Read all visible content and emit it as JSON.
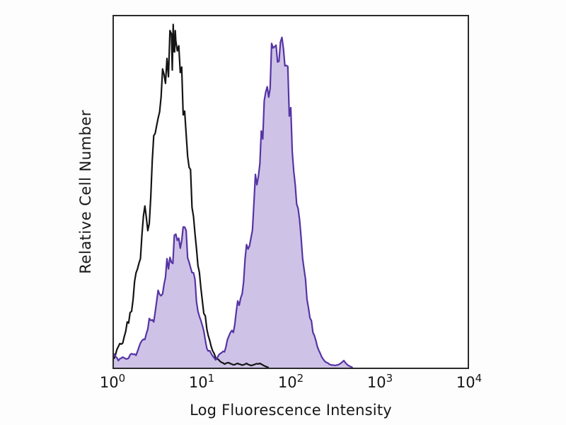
{
  "figure": {
    "background": "#ffffff",
    "frame_color": "#2b2b2b"
  },
  "chart_data": {
    "type": "histogram-overlay",
    "title": "",
    "xlabel": "Log Fluorescence Intensity",
    "ylabel": "Relative Cell Number",
    "x_scale": "log10",
    "x_exponent_range": [
      0,
      4
    ],
    "x_ticks": [
      "10^0",
      "10^1",
      "10^2",
      "10^3",
      "10^4"
    ],
    "y_ticks": [],
    "ylim": [
      0,
      1
    ],
    "grid": false,
    "legend": "none",
    "noise": {
      "upsample": 3,
      "amount": 0.1
    },
    "series": [
      {
        "name": "black-open-histogram",
        "style": "open",
        "line_color": "#141414",
        "fill_color": "none",
        "points": [
          [
            0.0,
            0.025
          ],
          [
            0.05,
            0.06
          ],
          [
            0.1,
            0.07
          ],
          [
            0.15,
            0.13
          ],
          [
            0.2,
            0.16
          ],
          [
            0.25,
            0.27
          ],
          [
            0.3,
            0.31
          ],
          [
            0.35,
            0.46
          ],
          [
            0.4,
            0.41
          ],
          [
            0.45,
            0.66
          ],
          [
            0.5,
            0.71
          ],
          [
            0.55,
            0.85
          ],
          [
            0.6,
            0.88
          ],
          [
            0.65,
            0.95
          ],
          [
            0.68,
            0.9
          ],
          [
            0.7,
            0.93
          ],
          [
            0.75,
            0.84
          ],
          [
            0.8,
            0.73
          ],
          [
            0.85,
            0.57
          ],
          [
            0.9,
            0.43
          ],
          [
            0.95,
            0.29
          ],
          [
            1.0,
            0.19
          ],
          [
            1.05,
            0.11
          ],
          [
            1.1,
            0.06
          ],
          [
            1.15,
            0.028
          ],
          [
            1.2,
            0.018
          ],
          [
            1.25,
            0.01
          ],
          [
            1.3,
            0.014
          ],
          [
            1.35,
            0.008
          ],
          [
            1.4,
            0.012
          ],
          [
            1.45,
            0.007
          ],
          [
            1.5,
            0.012
          ],
          [
            1.55,
            0.006
          ],
          [
            1.6,
            0.01
          ],
          [
            1.65,
            0.012
          ],
          [
            1.7,
            0.005
          ],
          [
            1.75,
            0.0
          ]
        ]
      },
      {
        "name": "purple-filled-histogram",
        "style": "filled",
        "line_color": "#5634a4",
        "fill_color": "#cec3e6",
        "points": [
          [
            0.0,
            0.04
          ],
          [
            0.05,
            0.02
          ],
          [
            0.1,
            0.03
          ],
          [
            0.15,
            0.025
          ],
          [
            0.2,
            0.04
          ],
          [
            0.25,
            0.035
          ],
          [
            0.3,
            0.07
          ],
          [
            0.35,
            0.08
          ],
          [
            0.4,
            0.14
          ],
          [
            0.45,
            0.13
          ],
          [
            0.5,
            0.22
          ],
          [
            0.55,
            0.21
          ],
          [
            0.6,
            0.31
          ],
          [
            0.65,
            0.3
          ],
          [
            0.7,
            0.38
          ],
          [
            0.75,
            0.34
          ],
          [
            0.8,
            0.4
          ],
          [
            0.85,
            0.3
          ],
          [
            0.9,
            0.27
          ],
          [
            0.95,
            0.16
          ],
          [
            1.0,
            0.12
          ],
          [
            1.05,
            0.055
          ],
          [
            1.1,
            0.04
          ],
          [
            1.15,
            0.022
          ],
          [
            1.2,
            0.04
          ],
          [
            1.25,
            0.045
          ],
          [
            1.3,
            0.09
          ],
          [
            1.35,
            0.1
          ],
          [
            1.4,
            0.19
          ],
          [
            1.45,
            0.21
          ],
          [
            1.5,
            0.35
          ],
          [
            1.55,
            0.37
          ],
          [
            1.6,
            0.55
          ],
          [
            1.65,
            0.58
          ],
          [
            1.7,
            0.76
          ],
          [
            1.75,
            0.77
          ],
          [
            1.8,
            0.91
          ],
          [
            1.85,
            0.87
          ],
          [
            1.9,
            0.94
          ],
          [
            1.95,
            0.86
          ],
          [
            2.0,
            0.74
          ],
          [
            2.05,
            0.52
          ],
          [
            2.1,
            0.42
          ],
          [
            2.15,
            0.28
          ],
          [
            2.2,
            0.17
          ],
          [
            2.25,
            0.1
          ],
          [
            2.3,
            0.06
          ],
          [
            2.35,
            0.03
          ],
          [
            2.4,
            0.015
          ],
          [
            2.45,
            0.008
          ],
          [
            2.5,
            0.006
          ],
          [
            2.55,
            0.01
          ],
          [
            2.6,
            0.02
          ],
          [
            2.65,
            0.006
          ],
          [
            2.7,
            0.0
          ]
        ]
      }
    ]
  }
}
